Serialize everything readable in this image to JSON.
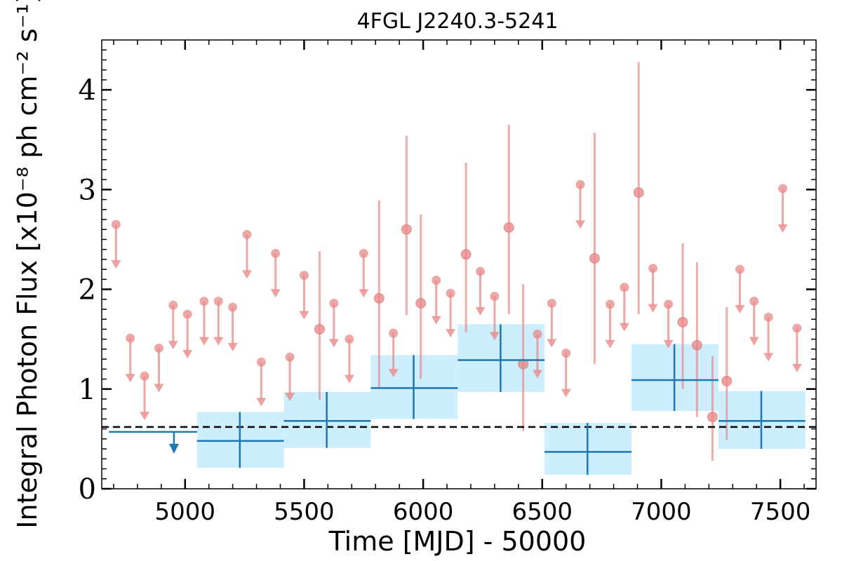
{
  "chart_data": {
    "type": "scatter",
    "title": "4FGL J2240.3-5241",
    "xlabel": "Time [MJD] - 50000",
    "ylabel": "Integral Photon Flux [x10⁻⁸ ph cm⁻² s⁻¹]",
    "xlim": [
      4650,
      7650
    ],
    "ylim": [
      0,
      4.5
    ],
    "x_ticks": [
      5000,
      5500,
      6000,
      6500,
      7000,
      7500
    ],
    "y_ticks": [
      0,
      1,
      2,
      3,
      4
    ],
    "reference_line": {
      "y": 0.62,
      "style": "dashed"
    },
    "colors": {
      "short_bins": "#e88a8a",
      "long_bins": "#1f77b4",
      "long_bins_band": "#cdeefc",
      "reference_line": "#000000"
    },
    "series": [
      {
        "bin_width": "short",
        "upper_limits": [
          {
            "x": 4710,
            "y": 2.65
          },
          {
            "x": 4770,
            "y": 1.51
          },
          {
            "x": 4830,
            "y": 1.13
          },
          {
            "x": 4890,
            "y": 1.41
          },
          {
            "x": 4950,
            "y": 1.84
          },
          {
            "x": 5010,
            "y": 1.75
          },
          {
            "x": 5080,
            "y": 1.88
          },
          {
            "x": 5140,
            "y": 1.88
          },
          {
            "x": 5200,
            "y": 1.82
          },
          {
            "x": 5260,
            "y": 2.55
          },
          {
            "x": 5320,
            "y": 1.27
          },
          {
            "x": 5380,
            "y": 2.36
          },
          {
            "x": 5440,
            "y": 1.32
          },
          {
            "x": 5500,
            "y": 2.14
          },
          {
            "x": 5625,
            "y": 1.86
          },
          {
            "x": 5690,
            "y": 1.5
          },
          {
            "x": 5750,
            "y": 2.36
          },
          {
            "x": 5875,
            "y": 1.56
          },
          {
            "x": 6055,
            "y": 2.09
          },
          {
            "x": 6115,
            "y": 1.96
          },
          {
            "x": 6240,
            "y": 2.18
          },
          {
            "x": 6300,
            "y": 1.93
          },
          {
            "x": 6480,
            "y": 1.55
          },
          {
            "x": 6540,
            "y": 1.86
          },
          {
            "x": 6600,
            "y": 1.36
          },
          {
            "x": 6660,
            "y": 3.05
          },
          {
            "x": 6785,
            "y": 1.85
          },
          {
            "x": 6845,
            "y": 2.02
          },
          {
            "x": 6965,
            "y": 2.21
          },
          {
            "x": 7030,
            "y": 1.85
          },
          {
            "x": 7330,
            "y": 2.2
          },
          {
            "x": 7390,
            "y": 1.88
          },
          {
            "x": 7450,
            "y": 1.72
          },
          {
            "x": 7510,
            "y": 3.01
          },
          {
            "x": 7570,
            "y": 1.61
          }
        ],
        "detections": [
          {
            "x": 5565,
            "y": 1.6,
            "y_low": 0.89,
            "y_high": 2.38
          },
          {
            "x": 5815,
            "y": 1.91,
            "y_low": 1.0,
            "y_high": 2.89
          },
          {
            "x": 5930,
            "y": 2.6,
            "y_low": 1.74,
            "y_high": 3.54
          },
          {
            "x": 5990,
            "y": 1.86,
            "y_low": 1.1,
            "y_high": 2.75
          },
          {
            "x": 6180,
            "y": 2.35,
            "y_low": 1.57,
            "y_high": 3.27
          },
          {
            "x": 6360,
            "y": 2.62,
            "y_low": 1.75,
            "y_high": 3.65
          },
          {
            "x": 6420,
            "y": 1.25,
            "y_low": 0.58,
            "y_high": 2.05
          },
          {
            "x": 6720,
            "y": 2.31,
            "y_low": 1.25,
            "y_high": 3.57
          },
          {
            "x": 6905,
            "y": 2.97,
            "y_low": 1.75,
            "y_high": 4.28
          },
          {
            "x": 7090,
            "y": 1.67,
            "y_low": 1.0,
            "y_high": 2.46
          },
          {
            "x": 7150,
            "y": 1.44,
            "y_low": 0.72,
            "y_high": 2.27
          },
          {
            "x": 7215,
            "y": 0.72,
            "y_low": 0.28,
            "y_high": 1.33
          },
          {
            "x": 7275,
            "y": 1.08,
            "y_low": 0.49,
            "y_high": 1.82
          }
        ]
      },
      {
        "bin_width": "long",
        "upper_limits": [
          {
            "x_start": 4680,
            "x_end": 5050,
            "y": 0.57
          }
        ],
        "detections": [
          {
            "x": 5230,
            "x_start": 5050,
            "x_end": 5415,
            "y": 0.48,
            "y_low": 0.21,
            "y_high": 0.77
          },
          {
            "x": 5595,
            "x_start": 5415,
            "x_end": 5780,
            "y": 0.68,
            "y_low": 0.41,
            "y_high": 0.97
          },
          {
            "x": 5960,
            "x_start": 5780,
            "x_end": 6145,
            "y": 1.01,
            "y_low": 0.7,
            "y_high": 1.34
          },
          {
            "x": 6325,
            "x_start": 6145,
            "x_end": 6510,
            "y": 1.29,
            "y_low": 0.97,
            "y_high": 1.65
          },
          {
            "x": 6690,
            "x_start": 6510,
            "x_end": 6875,
            "y": 0.37,
            "y_low": 0.14,
            "y_high": 0.66
          },
          {
            "x": 7055,
            "x_start": 6875,
            "x_end": 7240,
            "y": 1.09,
            "y_low": 0.78,
            "y_high": 1.45
          },
          {
            "x": 7420,
            "x_start": 7240,
            "x_end": 7605,
            "y": 0.68,
            "y_low": 0.4,
            "y_high": 0.98
          }
        ]
      }
    ]
  }
}
